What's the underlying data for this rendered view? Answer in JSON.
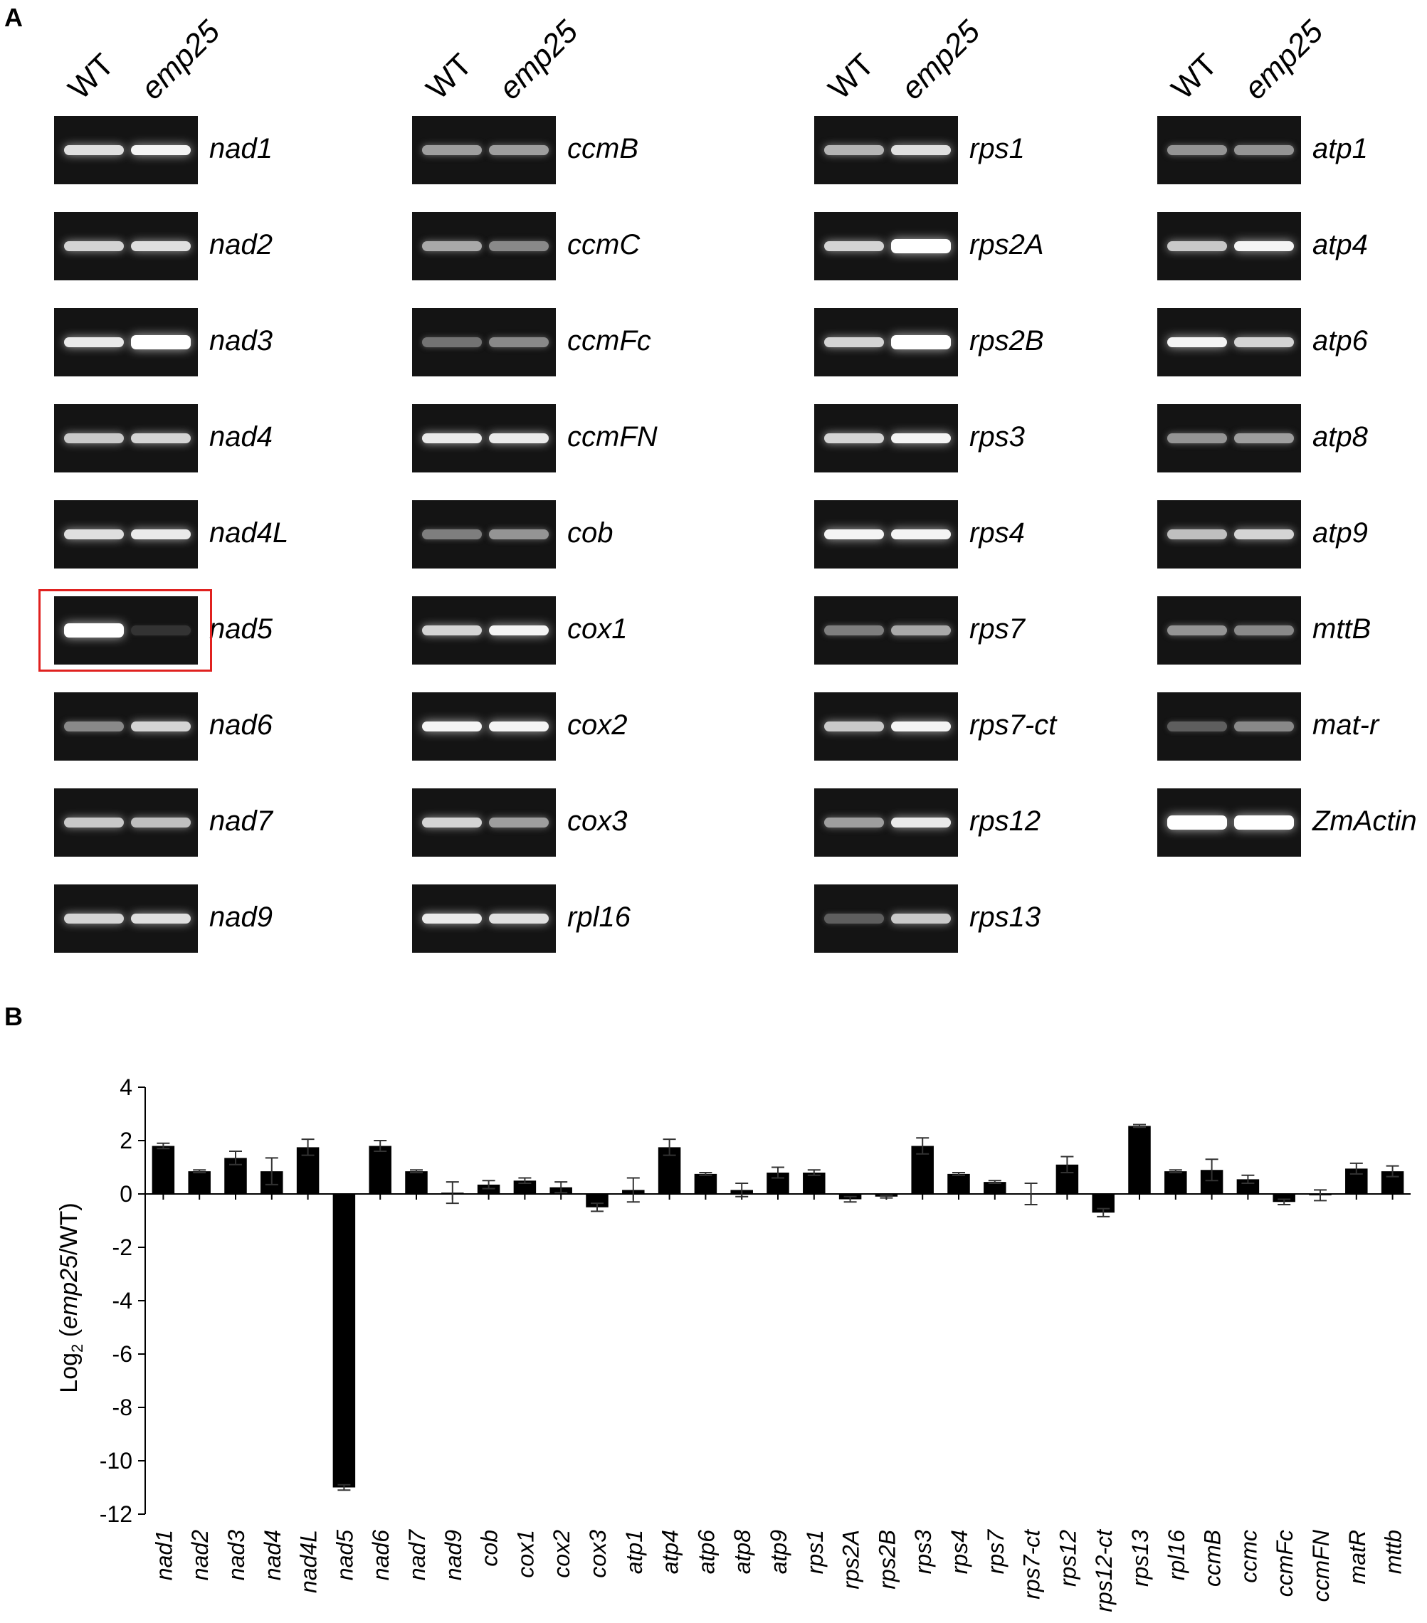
{
  "panel_a": {
    "letter": "A",
    "lane_labels": [
      "WT",
      "emp25"
    ],
    "columns": [
      {
        "genes": [
          {
            "name": "nad1",
            "wt": 0.85,
            "mut": 0.95
          },
          {
            "name": "nad2",
            "wt": 0.8,
            "mut": 0.85
          },
          {
            "name": "nad3",
            "wt": 0.9,
            "mut": 1.0
          },
          {
            "name": "nad4",
            "wt": 0.75,
            "mut": 0.8
          },
          {
            "name": "nad4L",
            "wt": 0.85,
            "mut": 0.9
          },
          {
            "name": "nad5",
            "wt": 1.0,
            "mut": 0.05
          },
          {
            "name": "nad6",
            "wt": 0.45,
            "mut": 0.8
          },
          {
            "name": "nad7",
            "wt": 0.75,
            "mut": 0.7
          },
          {
            "name": "nad9",
            "wt": 0.8,
            "mut": 0.85
          }
        ]
      },
      {
        "genes": [
          {
            "name": "ccmB",
            "wt": 0.55,
            "mut": 0.55
          },
          {
            "name": "ccmC",
            "wt": 0.6,
            "mut": 0.45
          },
          {
            "name": "ccmFc",
            "wt": 0.35,
            "mut": 0.45
          },
          {
            "name": "ccmFN",
            "wt": 0.9,
            "mut": 0.9
          },
          {
            "name": "cob",
            "wt": 0.4,
            "mut": 0.5
          },
          {
            "name": "cox1",
            "wt": 0.8,
            "mut": 0.95
          },
          {
            "name": "cox2",
            "wt": 0.95,
            "mut": 0.95
          },
          {
            "name": "cox3",
            "wt": 0.8,
            "mut": 0.55
          },
          {
            "name": "rpl16",
            "wt": 0.9,
            "mut": 0.85
          }
        ]
      },
      {
        "genes": [
          {
            "name": "rps1",
            "wt": 0.65,
            "mut": 0.85
          },
          {
            "name": "rps2A",
            "wt": 0.8,
            "mut": 1.0
          },
          {
            "name": "rps2B",
            "wt": 0.8,
            "mut": 1.0
          },
          {
            "name": "rps3",
            "wt": 0.8,
            "mut": 0.95
          },
          {
            "name": "rps4",
            "wt": 0.95,
            "mut": 0.95
          },
          {
            "name": "rps7",
            "wt": 0.4,
            "mut": 0.6
          },
          {
            "name": "rps7-ct",
            "wt": 0.75,
            "mut": 0.95
          },
          {
            "name": "rps12",
            "wt": 0.55,
            "mut": 0.9
          },
          {
            "name": "rps13",
            "wt": 0.25,
            "mut": 0.75
          }
        ]
      },
      {
        "genes": [
          {
            "name": "atp1",
            "wt": 0.5,
            "mut": 0.5
          },
          {
            "name": "atp4",
            "wt": 0.75,
            "mut": 0.95
          },
          {
            "name": "atp6",
            "wt": 0.95,
            "mut": 0.8
          },
          {
            "name": "atp8",
            "wt": 0.5,
            "mut": 0.55
          },
          {
            "name": "atp9",
            "wt": 0.7,
            "mut": 0.8
          },
          {
            "name": "mttB",
            "wt": 0.5,
            "mut": 0.45
          },
          {
            "name": "mat-r",
            "wt": 0.25,
            "mut": 0.45
          },
          {
            "name": "ZmActin",
            "wt": 1.0,
            "mut": 1.0
          }
        ]
      }
    ]
  },
  "panel_b": {
    "letter": "B",
    "ylabel_prefix": "Log",
    "ylabel_sub": "2",
    "ylabel_open": " (",
    "ylabel_italic": "emp25",
    "ylabel_close": "/WT)"
  },
  "chart_data": {
    "type": "bar",
    "categories": [
      "nad1",
      "nad2",
      "nad3",
      "nad4",
      "nad4L",
      "nad5",
      "nad6",
      "nad7",
      "nad9",
      "cob",
      "cox1",
      "cox2",
      "cox3",
      "atp1",
      "atp4",
      "atp6",
      "atp8",
      "atp9",
      "rps1",
      "rps2A",
      "rps2B",
      "rps3",
      "rps4",
      "rps7",
      "rps7-ct",
      "rps12",
      "rps12-ct",
      "rps13",
      "rpl16",
      "ccmB",
      "ccmc",
      "ccmFc",
      "ccmFN",
      "matR",
      "mttb"
    ],
    "values": [
      1.8,
      0.85,
      1.35,
      0.85,
      1.75,
      -11.0,
      1.8,
      0.85,
      0.05,
      0.35,
      0.5,
      0.25,
      -0.5,
      0.15,
      1.75,
      0.75,
      0.15,
      0.8,
      0.8,
      -0.2,
      -0.1,
      1.8,
      0.75,
      0.45,
      0.0,
      1.1,
      -0.7,
      2.55,
      0.85,
      0.9,
      0.55,
      -0.3,
      -0.05,
      0.95,
      0.85
    ],
    "errors": [
      0.1,
      0.05,
      0.25,
      0.5,
      0.3,
      0.1,
      0.2,
      0.05,
      0.4,
      0.15,
      0.1,
      0.2,
      0.15,
      0.45,
      0.3,
      0.05,
      0.25,
      0.2,
      0.1,
      0.1,
      0.05,
      0.3,
      0.05,
      0.05,
      0.4,
      0.3,
      0.15,
      0.05,
      0.05,
      0.4,
      0.15,
      0.1,
      0.2,
      0.2,
      0.2
    ],
    "ylim": [
      -12,
      4
    ],
    "yticks": [
      4,
      2,
      0,
      -2,
      -4,
      -6,
      -8,
      -10,
      -12
    ],
    "bar_color": "#000000",
    "highlight_color": "#e0211f"
  }
}
